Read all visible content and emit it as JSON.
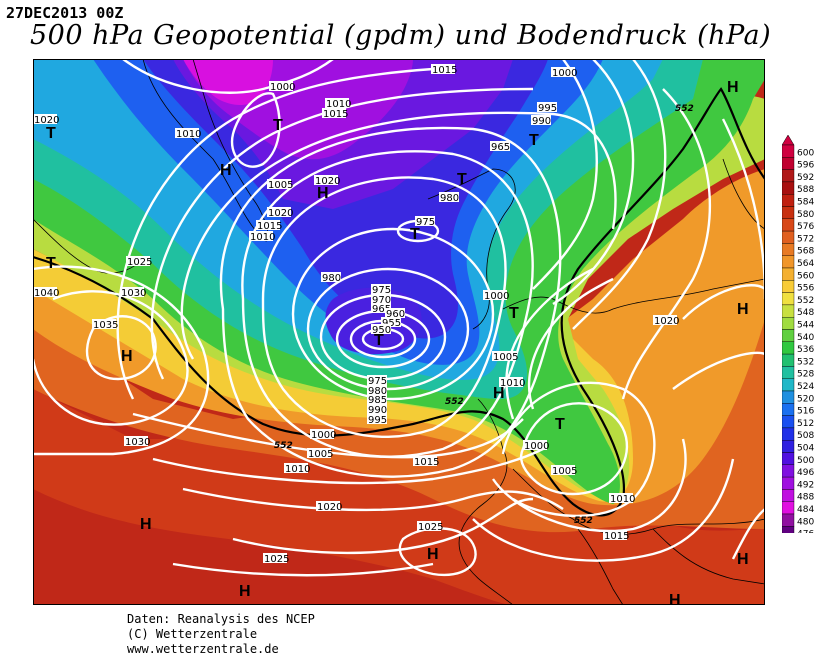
{
  "header": {
    "date": "27DEC2013 00Z",
    "title": "500 hPa Geopotential (gpdm) und Bodendruck (hPa)"
  },
  "legend": {
    "values": [
      "600",
      "596",
      "592",
      "588",
      "584",
      "580",
      "576",
      "572",
      "568",
      "564",
      "560",
      "556",
      "552",
      "548",
      "544",
      "540",
      "536",
      "532",
      "528",
      "524",
      "520",
      "516",
      "512",
      "508",
      "504",
      "500",
      "496",
      "492",
      "488",
      "484",
      "480",
      "476"
    ],
    "colors": [
      "#d00040",
      "#c00030",
      "#b01818",
      "#a81010",
      "#c02010",
      "#c83010",
      "#d84818",
      "#e06020",
      "#e87a24",
      "#f0962a",
      "#f4b030",
      "#f8cc38",
      "#f0e040",
      "#c8e040",
      "#a0dc40",
      "#60d040",
      "#30c840",
      "#20c070",
      "#20c0a0",
      "#20b8c8",
      "#2090e0",
      "#1a70f0",
      "#1a50f0",
      "#2030e8",
      "#3020e0",
      "#5010e0",
      "#8010e0",
      "#a010e0",
      "#c010e0",
      "#e010e0",
      "#9010a0",
      "#600080"
    ]
  },
  "map": {
    "pressure_labels": [
      "1015",
      "1000",
      "1020",
      "1010",
      "1000",
      "1010",
      "1015",
      "995",
      "990",
      "1005",
      "1020",
      "965",
      "1020",
      "1015",
      "1010",
      "975",
      "980",
      "1025",
      "1030",
      "1035",
      "1040",
      "1020",
      "980",
      "975",
      "970",
      "965",
      "960",
      "955",
      "950",
      "1000",
      "1005",
      "1010",
      "1000",
      "975",
      "980",
      "985",
      "990",
      "995",
      "1000",
      "1005",
      "1010",
      "1015",
      "1030",
      "1005",
      "1010",
      "1020",
      "1025",
      "1025",
      "1015"
    ],
    "geopotential_labels": [
      "552",
      "552",
      "552",
      "552"
    ],
    "highs": [
      "H",
      "H",
      "H",
      "H",
      "H",
      "H",
      "H",
      "H",
      "H",
      "H",
      "H"
    ],
    "lows": [
      "T",
      "T",
      "T",
      "T",
      "T",
      "T",
      "T",
      "T",
      "T"
    ]
  },
  "footer": {
    "line1": "Daten: Reanalysis des NCEP",
    "line2": "(C) Wetterzentrale",
    "line3": "www.wetterzentrale.de"
  }
}
